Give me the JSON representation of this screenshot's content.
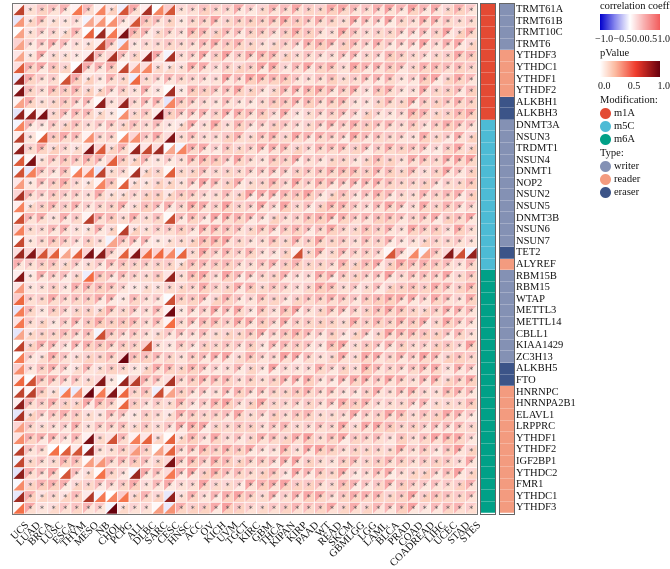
{
  "chart_data": {
    "type": "heatmap",
    "title": "",
    "description": "Split-cell heatmap: upper-left triangle = correlation coefficient (blue-white-red), lower-right triangle = pValue (white-dark red); '*' marks significant cells",
    "columns": [
      "UCS",
      "LUAD",
      "BRCA",
      "LUSC",
      "ESCA",
      "THYM",
      "MESO",
      "NB",
      "CHOL",
      "PCPG",
      "ALL",
      "DLBC",
      "SARC",
      "CESC",
      "HNSC",
      "ACC",
      "OV",
      "KICH",
      "UVM",
      "TGCT",
      "KIRC",
      "GBM",
      "THCA",
      "KIPAN",
      "KIRP",
      "PAAD",
      "WT",
      "READ",
      "SKCM",
      "GBMLGG",
      "LGG",
      "LAML",
      "BLCA",
      "PRAD",
      "COAD",
      "COADREAD",
      "LIHC",
      "UCEC",
      "STAD",
      "STES"
    ],
    "rows": [
      "TRMT61A",
      "TRMT61B",
      "TRMT10C",
      "TRMT6",
      "YTHDF3",
      "YTHDC1",
      "YTHDF1",
      "YTHDF2",
      "ALKBH1",
      "ALKBH3",
      "DNMT3A",
      "NSUN3",
      "TRDMT1",
      "NSUN4",
      "DNMT1",
      "NOP2",
      "NSUN2",
      "NSUN5",
      "DNMT3B",
      "NSUN6",
      "NSUN7",
      "TET2",
      "ALYREF",
      "RBM15B",
      "RBM15",
      "WTAP",
      "METTL3",
      "METTL14",
      "CBLL1",
      "KIAA1429",
      "ZC3H13",
      "ALKBH5",
      "FTO",
      "HNRNPC",
      "HNRNPA2B1",
      "ELAVL1",
      "LRPPRC",
      "YTHDF1",
      "YTHDF2",
      "IGF2BP1",
      "YTHDC2",
      "FMR1",
      "YTHDC1",
      "YTHDF3"
    ],
    "modification": [
      "m1A",
      "m1A",
      "m1A",
      "m1A",
      "m1A",
      "m1A",
      "m1A",
      "m1A",
      "m1A",
      "m1A",
      "m5C",
      "m5C",
      "m5C",
      "m5C",
      "m5C",
      "m5C",
      "m5C",
      "m5C",
      "m5C",
      "m5C",
      "m5C",
      "m5C",
      "m5C",
      "m6A",
      "m6A",
      "m6A",
      "m6A",
      "m6A",
      "m6A",
      "m6A",
      "m6A",
      "m6A",
      "m6A",
      "m6A",
      "m6A",
      "m6A",
      "m6A",
      "m6A",
      "m6A",
      "m6A",
      "m6A",
      "m6A",
      "m6A",
      "m6A"
    ],
    "gene_type": [
      "writer",
      "writer",
      "writer",
      "writer",
      "reader",
      "reader",
      "reader",
      "reader",
      "eraser",
      "eraser",
      "writer",
      "writer",
      "writer",
      "writer",
      "writer",
      "writer",
      "writer",
      "writer",
      "writer",
      "writer",
      "writer",
      "eraser",
      "reader",
      "writer",
      "writer",
      "writer",
      "writer",
      "writer",
      "writer",
      "writer",
      "writer",
      "eraser",
      "eraser",
      "reader",
      "reader",
      "reader",
      "reader",
      "reader",
      "reader",
      "reader",
      "reader",
      "reader",
      "reader",
      "reader"
    ],
    "significance_pattern": "Columns ACC through STES significant (*) for nearly all genes; first 15 columns (UCS..HNSC) mixed with several non-significant dark-red p-value cells; UCS column mostly non-significant",
    "correlation_range": [
      -1.0,
      1.0
    ],
    "pvalue_range": [
      0.0,
      1.0
    ],
    "sig_rows": [
      "0111101010100011111111111111111111111111",
      "0111110001011111111111111111111111111111",
      "0111110000111111111111111111111111111111",
      "0111111010111111111111111111111111111111",
      "0111110101101011111111111111111111111111",
      "0111101110001111111111111111111111111111",
      "0111011111011111111111111111111111111111",
      "0111111111111011111111111111111111111111",
      "0111111010111011111111111111111111111111",
      "0001111110110111111111111111111111111111",
      "0111111111111111111111111111111111111111",
      "0101110110011011111111111111111111111111",
      "0111110011000001111111111111111111111111",
      "0011111101111111111111111111111111111111",
      "0011100011011011111111111111111111111111",
      "0111111010111111111111111111111111111111",
      "0111111111111111111111111111111111111111",
      "0111111111111111111111111111111111111111",
      "0111110111111011111111111111111111111111",
      "0111111110111111111111111111111111111111",
      "0111111101111111111111111111111111111111",
      "0000000010000001111111110111111101001000",
      "1111111111111111111111111111111111111111",
      "0111110111111011111111111111111111111111",
      "0111111111111111111111111111111111111111",
      "0111111111111011111111111111111111111111",
      "0111111111111011111111111111111111111111",
      "0111111111111011111111111111111111111111",
      "0111111011111111111111111111111111111111",
      "0111111111101111111111111111111111111111",
      "0111111110111111111111111111111111111111",
      "0111111111111111111111111111111111111111",
      "0011111010011011111111111111111111111111",
      "0011000000110011111111111111111111111111",
      "0111111110111111111111111111111111111111",
      "0111111111111111111111111111111111111111",
      "0111111111111111111111111111111111111111",
      "0111110101001011111111111111111111111111",
      "0110000111010011111111111111111111111111",
      "0111110011111011111111111111111111111111",
      "0111011011011011111111111111111111111111",
      "0111111111111111111111111111111111111111",
      "0111110000111011111111111111111111111111",
      "0111111101110011111111111111111111111111"
    ]
  },
  "annotation_colors": {
    "modification": {
      "m1A": "#E34A33",
      "m5C": "#4DBBD5",
      "m6A": "#00A087"
    },
    "type": {
      "writer": "#8491B4",
      "reader": "#F39B7F",
      "eraser": "#3C5488"
    }
  },
  "legend": {
    "corr_title": "correlation coefficient",
    "corr_ticks": [
      "−1.0",
      "−0.5",
      "0.0",
      "0.5",
      "1.0"
    ],
    "p_title": "pValue",
    "p_ticks": [
      "0.0",
      "0.5",
      "1.0"
    ],
    "modification_title": "Modification:",
    "modification_items": [
      "m1A",
      "m5C",
      "m6A"
    ],
    "type_title": "Type:",
    "type_items": [
      "writer",
      "reader",
      "eraser"
    ]
  },
  "colors": {
    "corr_neg": "#0000CC",
    "corr_zero": "#FFFFFF",
    "corr_pos": "#F25C5C",
    "p_low": "#FFFFFF",
    "p_high": "#67000D",
    "star": "#555555"
  }
}
